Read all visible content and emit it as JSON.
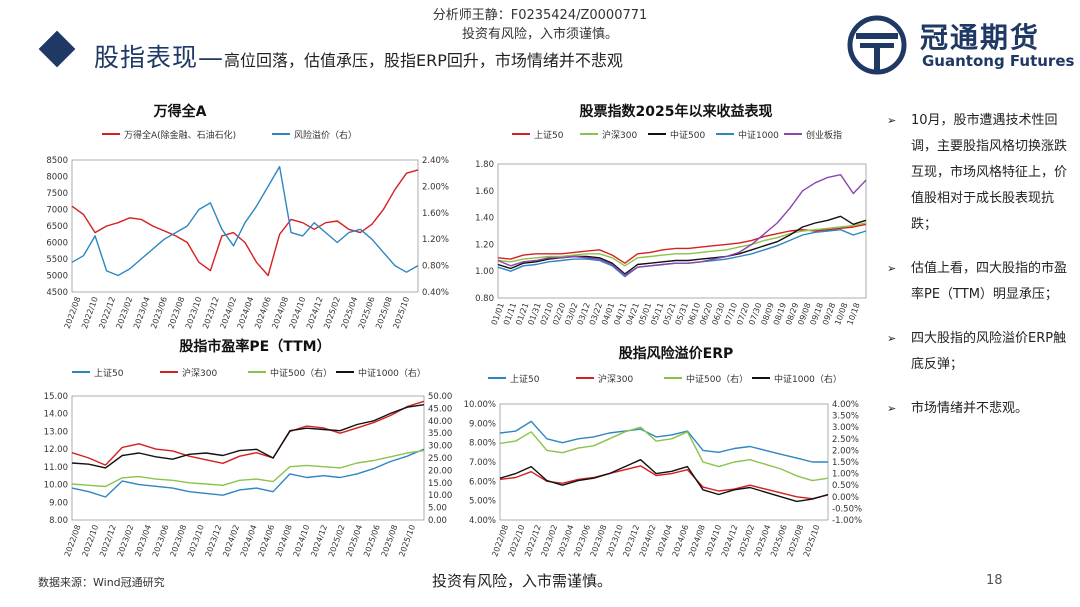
{
  "header": {
    "analyst": "分析师王静：F0235424/Z0000771",
    "disclaimer": "投资有风险，入市须谨慎。",
    "title_main": "股指表现—",
    "title_sub": "高位回落，估值承压，股指ERP回升，市场情绪并不悲观"
  },
  "logo": {
    "name": "冠通期货",
    "en": "Guantong Futures"
  },
  "sidebar": {
    "bullets": [
      "10月，股市遭遇技术性回调，主要股指风格切换涨跌互现，市场风格特征上，价值股相对于成长股表现抗跌；",
      "估值上看，四大股指的市盈率PE（TTM）明显承压；",
      "四大股指的风险溢价ERP触底反弹；",
      "市场情绪并不悲观。"
    ]
  },
  "footer": {
    "source": "数据来源：Wind冠通研究",
    "risk": "投资有风险，入市需谨慎。",
    "page": "18"
  },
  "colors": {
    "red": "#d42020",
    "blue": "#2e86c1",
    "green": "#8bc34a",
    "black": "#111111",
    "purple": "#8e44ad",
    "navy": "#1f3864"
  },
  "chart_data": [
    {
      "type": "line",
      "title": "万得全A",
      "legend": [
        "万得全A(除金融、石油石化)",
        "风险溢价（右）"
      ],
      "x_ticks": [
        "2022/08",
        "2022/10",
        "2022/12",
        "2023/02",
        "2023/04",
        "2023/06",
        "2023/08",
        "2023/10",
        "2023/12",
        "2024/02",
        "2024/04",
        "2024/06",
        "2024/08",
        "2024/10",
        "2024/12",
        "2025/02",
        "2025/04",
        "2025/06",
        "2025/08",
        "2025/10"
      ],
      "y_ticks": [
        "4500",
        "5000",
        "5500",
        "6000",
        "6500",
        "7000",
        "7500",
        "8000",
        "8500"
      ],
      "y2_ticks": [
        "0.40%",
        "0.80%",
        "1.20%",
        "1.60%",
        "2.00%",
        "2.40%"
      ],
      "ylim": [
        4500,
        8500
      ],
      "y2lim": [
        0.4,
        2.4
      ],
      "series": [
        {
          "name": "万得全A(除金融、石油石化)",
          "axis": "left",
          "color": "#d42020",
          "values": [
            7100,
            6850,
            6300,
            6500,
            6600,
            6750,
            6700,
            6500,
            6350,
            6200,
            6000,
            5400,
            5150,
            6200,
            6300,
            6000,
            5400,
            5000,
            6250,
            6700,
            6600,
            6400,
            6600,
            6650,
            6400,
            6300,
            6550,
            7000,
            7600,
            8100,
            8200
          ]
        },
        {
          "name": "风险溢价（右）",
          "axis": "right",
          "color": "#2e86c1",
          "values": [
            0.85,
            0.95,
            1.25,
            0.72,
            0.65,
            0.75,
            0.9,
            1.05,
            1.2,
            1.3,
            1.4,
            1.65,
            1.75,
            1.35,
            1.1,
            1.45,
            1.7,
            2.0,
            2.3,
            1.3,
            1.25,
            1.45,
            1.3,
            1.15,
            1.3,
            1.35,
            1.2,
            1.0,
            0.8,
            0.7,
            0.8
          ]
        }
      ]
    },
    {
      "type": "line",
      "title": "股票指数2025年以来收益表现",
      "legend": [
        "上证50",
        "沪深300",
        "中证500",
        "中证1000",
        "创业板指"
      ],
      "x_ticks": [
        "01/01",
        "01/11",
        "01/21",
        "01/31",
        "02/10",
        "02/20",
        "03/02",
        "03/12",
        "03/22",
        "04/01",
        "04/11",
        "04/21",
        "05/01",
        "05/11",
        "05/21",
        "05/31",
        "06/10",
        "06/20",
        "06/30",
        "07/10",
        "07/20",
        "07/30",
        "08/09",
        "08/19",
        "08/29",
        "09/08",
        "09/18",
        "09/28",
        "10/08",
        "10/18"
      ],
      "y_ticks": [
        "0.80",
        "1.00",
        "1.20",
        "1.40",
        "1.60",
        "1.80"
      ],
      "ylim": [
        0.8,
        1.8
      ],
      "series": [
        {
          "name": "上证50",
          "color": "#d42020",
          "values": [
            1.1,
            1.09,
            1.12,
            1.13,
            1.13,
            1.13,
            1.14,
            1.15,
            1.16,
            1.12,
            1.06,
            1.13,
            1.14,
            1.16,
            1.17,
            1.17,
            1.18,
            1.19,
            1.2,
            1.21,
            1.23,
            1.26,
            1.28,
            1.3,
            1.31,
            1.3,
            1.31,
            1.32,
            1.33,
            1.35
          ]
        },
        {
          "name": "沪深300",
          "color": "#8bc34a",
          "values": [
            1.08,
            1.07,
            1.09,
            1.1,
            1.11,
            1.11,
            1.12,
            1.13,
            1.13,
            1.1,
            1.04,
            1.1,
            1.11,
            1.12,
            1.13,
            1.13,
            1.14,
            1.15,
            1.16,
            1.18,
            1.2,
            1.23,
            1.25,
            1.28,
            1.3,
            1.31,
            1.32,
            1.33,
            1.34,
            1.36
          ]
        },
        {
          "name": "中证500",
          "color": "#111111",
          "values": [
            1.05,
            1.02,
            1.06,
            1.07,
            1.09,
            1.1,
            1.11,
            1.11,
            1.1,
            1.06,
            0.98,
            1.05,
            1.06,
            1.07,
            1.08,
            1.08,
            1.09,
            1.1,
            1.11,
            1.13,
            1.16,
            1.19,
            1.22,
            1.27,
            1.33,
            1.36,
            1.38,
            1.41,
            1.35,
            1.38
          ]
        },
        {
          "name": "中证1000",
          "color": "#2e86c1",
          "values": [
            1.03,
            1.0,
            1.04,
            1.05,
            1.07,
            1.08,
            1.09,
            1.09,
            1.08,
            1.04,
            0.96,
            1.03,
            1.04,
            1.05,
            1.06,
            1.06,
            1.07,
            1.08,
            1.09,
            1.11,
            1.13,
            1.16,
            1.19,
            1.23,
            1.27,
            1.29,
            1.3,
            1.31,
            1.27,
            1.3
          ]
        },
        {
          "name": "创业板指",
          "color": "#8e44ad",
          "values": [
            1.08,
            1.04,
            1.07,
            1.08,
            1.1,
            1.1,
            1.11,
            1.1,
            1.09,
            1.05,
            0.97,
            1.03,
            1.04,
            1.05,
            1.06,
            1.06,
            1.07,
            1.09,
            1.11,
            1.14,
            1.2,
            1.28,
            1.36,
            1.47,
            1.6,
            1.66,
            1.7,
            1.72,
            1.58,
            1.68
          ]
        }
      ]
    },
    {
      "type": "line",
      "title": "股指市盈率PE（TTM）",
      "legend": [
        "上证50",
        "沪深300",
        "中证500（右）",
        "中证1000（右）"
      ],
      "x_ticks": [
        "2022/08",
        "2022/10",
        "2022/12",
        "2023/02",
        "2023/04",
        "2023/06",
        "2023/08",
        "2023/10",
        "2023/12",
        "2024/02",
        "2024/04",
        "2024/06",
        "2024/08",
        "2024/10",
        "2024/12",
        "2025/02",
        "2025/04",
        "2025/06",
        "2025/08",
        "2025/10"
      ],
      "y_ticks": [
        "8.00",
        "9.00",
        "10.00",
        "11.00",
        "12.00",
        "13.00",
        "14.00",
        "15.00"
      ],
      "y2_ticks": [
        "0.00",
        "5.00",
        "10.00",
        "15.00",
        "20.00",
        "25.00",
        "30.00",
        "35.00",
        "40.00",
        "45.00",
        "50.00"
      ],
      "ylim": [
        8,
        15
      ],
      "y2lim": [
        0,
        50
      ],
      "series": [
        {
          "name": "上证50",
          "axis": "left",
          "color": "#2e86c1",
          "values": [
            9.8,
            9.6,
            9.3,
            10.2,
            10.0,
            9.9,
            9.8,
            9.6,
            9.5,
            9.4,
            9.7,
            9.8,
            9.6,
            10.6,
            10.4,
            10.5,
            10.4,
            10.6,
            10.9,
            11.3,
            11.6,
            12.0
          ]
        },
        {
          "name": "沪深300",
          "axis": "left",
          "color": "#d42020",
          "values": [
            11.8,
            11.5,
            11.1,
            12.1,
            12.3,
            12.0,
            11.9,
            11.6,
            11.4,
            11.2,
            11.6,
            11.8,
            11.5,
            13.0,
            13.3,
            13.2,
            12.9,
            13.2,
            13.5,
            13.9,
            14.4,
            14.7
          ]
        },
        {
          "name": "中证500（右）",
          "axis": "right",
          "color": "#8bc34a",
          "values": [
            14.5,
            14.0,
            13.5,
            17.0,
            17.5,
            16.5,
            16.0,
            15.0,
            14.5,
            14.0,
            16.0,
            16.5,
            15.5,
            21.5,
            22.0,
            21.5,
            21.0,
            23.0,
            24.0,
            25.5,
            27.0,
            28.0
          ]
        },
        {
          "name": "中证1000（右）",
          "axis": "right",
          "color": "#111111",
          "values": [
            23.0,
            22.5,
            21.0,
            26.0,
            27.0,
            25.5,
            24.5,
            26.5,
            27.0,
            26.0,
            28.0,
            28.5,
            25.0,
            36.0,
            37.0,
            36.5,
            36.0,
            38.5,
            40.0,
            43.0,
            45.5,
            46.5
          ]
        }
      ]
    },
    {
      "type": "line",
      "title": "股指风险溢价ERP",
      "legend": [
        "上证50",
        "沪深300",
        "中证500（右）",
        "中证1000（右）"
      ],
      "x_ticks": [
        "2022/08",
        "2022/10",
        "2022/12",
        "2023/02",
        "2023/04",
        "2023/06",
        "2023/08",
        "2023/10",
        "2023/12",
        "2024/02",
        "2024/04",
        "2024/06",
        "2024/08",
        "2024/10",
        "2024/12",
        "2025/02",
        "2025/04",
        "2025/06",
        "2025/08",
        "2025/10"
      ],
      "y_ticks": [
        "4.00%",
        "5.00%",
        "6.00%",
        "7.00%",
        "8.00%",
        "9.00%",
        "10.00%"
      ],
      "y2_ticks": [
        "-1.00%",
        "-0.50%",
        "0.00%",
        "0.50%",
        "1.00%",
        "1.50%",
        "2.00%",
        "2.50%",
        "3.00%",
        "3.50%",
        "4.00%"
      ],
      "ylim": [
        4,
        10
      ],
      "y2lim": [
        -1,
        4
      ],
      "series": [
        {
          "name": "上证50",
          "axis": "left",
          "color": "#2e86c1",
          "values": [
            8.5,
            8.6,
            9.1,
            8.2,
            8.0,
            8.2,
            8.3,
            8.5,
            8.6,
            8.7,
            8.3,
            8.4,
            8.6,
            7.6,
            7.5,
            7.7,
            7.8,
            7.6,
            7.4,
            7.2,
            7.0,
            7.0
          ]
        },
        {
          "name": "沪深300",
          "axis": "left",
          "color": "#d42020",
          "values": [
            6.1,
            6.2,
            6.5,
            6.0,
            5.9,
            6.1,
            6.2,
            6.4,
            6.6,
            6.8,
            6.3,
            6.4,
            6.6,
            5.7,
            5.5,
            5.6,
            5.8,
            5.6,
            5.4,
            5.2,
            5.1,
            5.3
          ]
        },
        {
          "name": "中证500（右）",
          "axis": "right",
          "color": "#8bc34a",
          "values": [
            2.3,
            2.4,
            2.8,
            2.0,
            1.9,
            2.1,
            2.2,
            2.5,
            2.8,
            3.0,
            2.4,
            2.5,
            2.8,
            1.5,
            1.3,
            1.5,
            1.6,
            1.4,
            1.2,
            0.9,
            0.7,
            0.8
          ]
        },
        {
          "name": "中证1000（右）",
          "axis": "right",
          "color": "#111111",
          "values": [
            0.8,
            1.0,
            1.3,
            0.7,
            0.5,
            0.7,
            0.8,
            1.0,
            1.3,
            1.6,
            1.0,
            1.1,
            1.3,
            0.3,
            0.1,
            0.3,
            0.4,
            0.2,
            0.0,
            -0.2,
            -0.1,
            0.1
          ]
        }
      ]
    }
  ]
}
